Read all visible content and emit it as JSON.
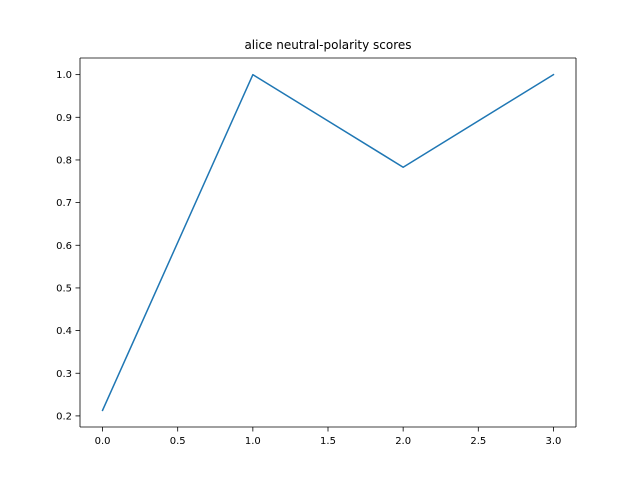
{
  "chart_data": {
    "type": "line",
    "title": "alice neutral-polarity scores",
    "xlabel": "",
    "ylabel": "",
    "xlim": [
      -0.15,
      3.15
    ],
    "ylim": [
      0.174,
      1.039
    ],
    "x_ticks": [
      0.0,
      0.5,
      1.0,
      1.5,
      2.0,
      2.5,
      3.0
    ],
    "x_tick_labels": [
      "0.0",
      "0.5",
      "1.0",
      "1.5",
      "2.0",
      "2.5",
      "3.0"
    ],
    "y_ticks": [
      0.2,
      0.3,
      0.4,
      0.5,
      0.6,
      0.7,
      0.8,
      0.9,
      1.0
    ],
    "y_tick_labels": [
      "0.2",
      "0.3",
      "0.4",
      "0.5",
      "0.6",
      "0.7",
      "0.8",
      "0.9",
      "1.0"
    ],
    "grid": false,
    "series": [
      {
        "x": [
          0,
          1,
          2,
          3
        ],
        "values": [
          0.213,
          1.0,
          0.783,
          1.0
        ],
        "color": "#1f77b4"
      }
    ]
  }
}
